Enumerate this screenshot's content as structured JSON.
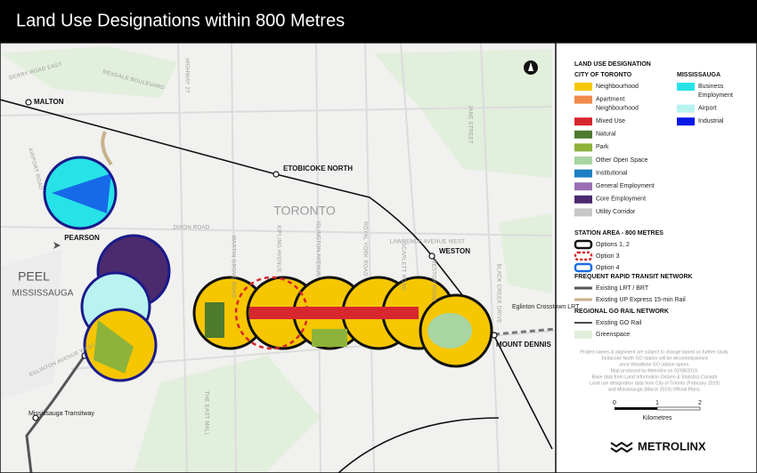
{
  "header": {
    "title": "Land Use Designations within 800 Metres"
  },
  "map": {
    "places": [
      "MALTON",
      "ETOBICOKE NORTH",
      "TORONTO",
      "PEARSON",
      "PEEL",
      "MISSISSAUGA",
      "WESTON",
      "MOUNT DENNIS"
    ],
    "transit_labels": [
      "Eglinton Crosstown LRT",
      "Mississauga Transitway"
    ],
    "streets": [
      "DERRY ROAD EAST",
      "REXDALE BOULEVARD",
      "HIGHWAY 27",
      "DIXON ROAD",
      "LAWRENCE AVENUE WEST",
      "EGLINTON AVENUE WEST",
      "MARTIN GROVE ROAD",
      "KIPLING AVENUE",
      "ISLINGTON AVENUE",
      "ROYAL YORK ROAD",
      "SCARLETT ROAD",
      "WESTON ROAD",
      "BLACK CREEK DRIVE",
      "JANE STREET",
      "THE EAST MALL",
      "AIRPORT ROAD"
    ]
  },
  "legend": {
    "title": "LAND USE DESIGNATION",
    "toronto": {
      "title": "CITY OF TORONTO",
      "items": [
        {
          "label": [
            "Neighbourhood"
          ],
          "color": "#f6c600"
        },
        {
          "label": [
            "Apartment",
            "Neighbourhood"
          ],
          "color": "#f08a4b"
        },
        {
          "label": [
            "Mixed Use"
          ],
          "color": "#d7262e"
        },
        {
          "label": [
            "Natural"
          ],
          "color": "#4e7a2e"
        },
        {
          "label": [
            "Park"
          ],
          "color": "#8db33a"
        },
        {
          "label": [
            "Other Open Space"
          ],
          "color": "#a8d5a2"
        },
        {
          "label": [
            "Institutional"
          ],
          "color": "#1d7fc1"
        },
        {
          "label": [
            "General Employment"
          ],
          "color": "#9b6fb3"
        },
        {
          "label": [
            "Core Employment"
          ],
          "color": "#4b2a6e"
        },
        {
          "label": [
            "Utility Corridor"
          ],
          "color": "#c7c7c7"
        }
      ]
    },
    "mississauga": {
      "title": "MISSISSAUGA",
      "items": [
        {
          "label": [
            "Business",
            "Employment"
          ],
          "color": "#27e3e8"
        },
        {
          "label": [
            "Airport"
          ],
          "color": "#b8f3f1"
        },
        {
          "label": [
            "Industrial"
          ],
          "color": "#0b19e6"
        }
      ]
    },
    "station_area": {
      "title": "STATION AREA - 800 METRES",
      "items": [
        "Options 1, 2",
        "Option 3",
        "Option 4"
      ]
    },
    "rapid_transit": {
      "title": "FREQUENT RAPID TRANSIT NETWORK",
      "items": [
        "Existing LRT / BRT",
        "Existing UP Express 15-min Rail"
      ]
    },
    "go_rail": {
      "title": "REGIONAL GO RAIL NETWORK",
      "items": [
        "Existing GO Rail",
        "Greenspace"
      ]
    },
    "notes": [
      "Project names & alignment are subject to change based on further study.",
      "Etobicoke North GO station will be decommissioned",
      "once Woodbine GO station opens.",
      "Map produced by Metrolinx on 02/08/2019.",
      "Base data from Land Information Ontario & Statistics Canada",
      "Land use designation data from City of Toronto (February 2019)",
      "and Mississauga (March 2019) Official Plans."
    ],
    "scale": {
      "ticks": [
        "0",
        "1",
        "2"
      ],
      "unit": "Kilometres"
    },
    "logo": "METROLINX"
  }
}
